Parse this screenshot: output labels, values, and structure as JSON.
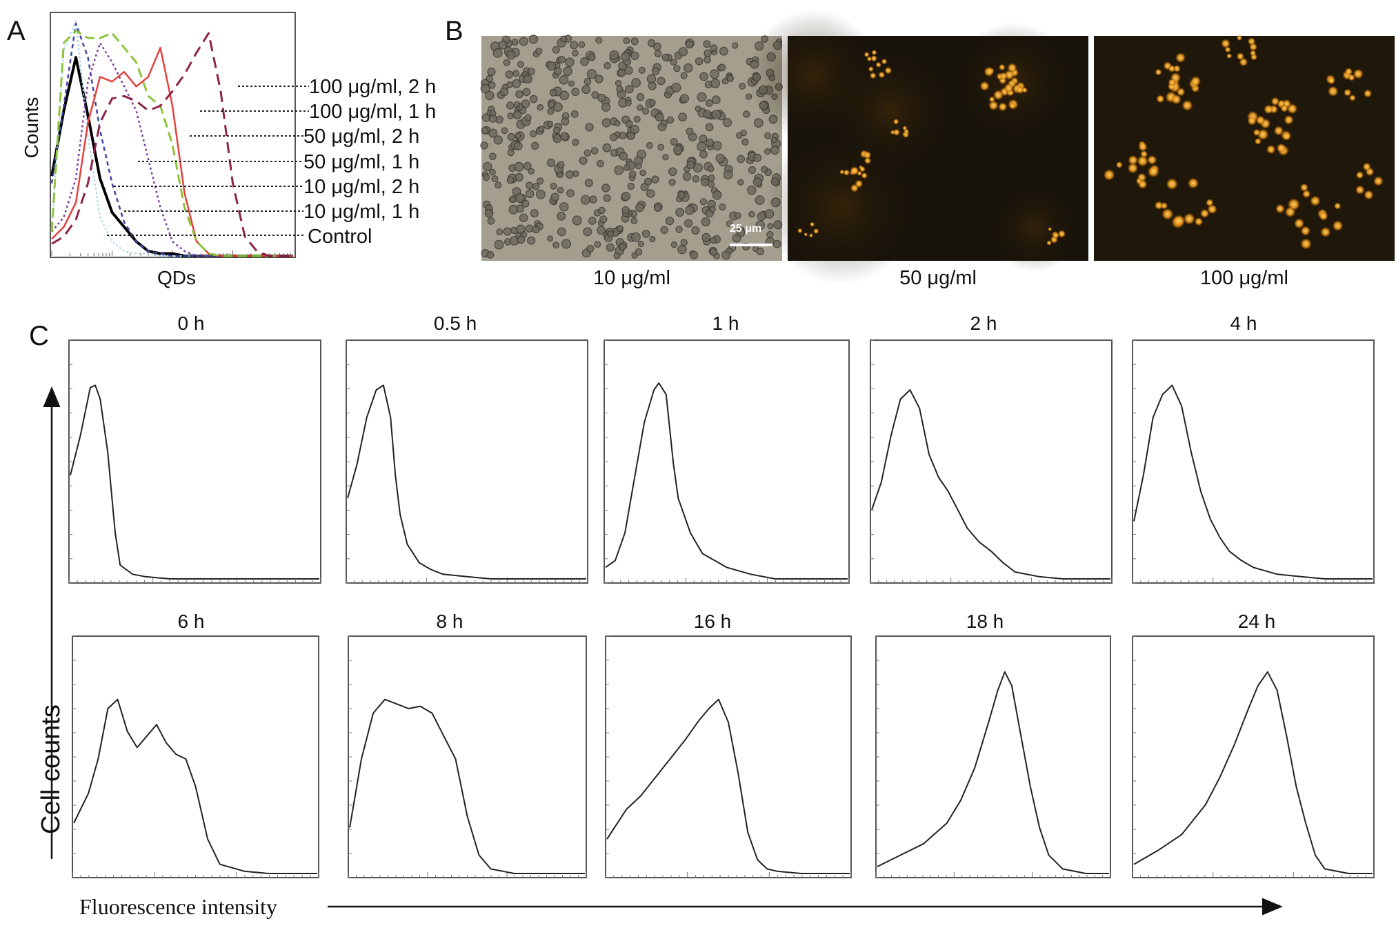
{
  "figure": {
    "panel_labels": [
      "A",
      "B",
      "C"
    ],
    "colors": {
      "control": "#000000",
      "c10_1h": "#a7d3ea",
      "c10_2h": "#3d44a4",
      "c50_1h": "#7a3aa0",
      "c50_2h": "#e3413e",
      "c100_1h": "#8cc43a",
      "c100_2h": "#8e2347"
    }
  },
  "chart_data": [
    {
      "id": "A",
      "type": "line",
      "xlabel": "QDs",
      "ylabel": "Counts",
      "x_scale": "log",
      "x": [
        0,
        0.05,
        0.1,
        0.15,
        0.2,
        0.25,
        0.3,
        0.35,
        0.4,
        0.45,
        0.5,
        0.55,
        0.6,
        0.65,
        0.7,
        0.75,
        0.8,
        0.85,
        0.9,
        0.95,
        1
      ],
      "series": [
        {
          "name": "Control",
          "color_key": "control",
          "values": [
            0.33,
            0.6,
            0.82,
            0.58,
            0.32,
            0.18,
            0.12,
            0.06,
            0.02,
            0.01,
            0.01,
            0.0,
            0.0,
            0.0,
            0.0,
            0.0,
            0.0,
            0.0,
            0.0,
            0.0,
            0.0
          ]
        },
        {
          "name": "10 μg/ml, 1 h",
          "color_key": "c10_1h",
          "values": [
            0.12,
            0.85,
            0.97,
            0.5,
            0.16,
            0.06,
            0.02,
            0.01,
            0.01,
            0.0,
            0.0,
            0.0,
            0.0,
            0.0,
            0.0,
            0.0,
            0.0,
            0.0,
            0.0,
            0.0,
            0.0
          ]
        },
        {
          "name": "10 μg/ml, 2 h",
          "color_key": "c10_2h",
          "values": [
            0.3,
            0.62,
            0.96,
            0.82,
            0.52,
            0.3,
            0.14,
            0.06,
            0.02,
            0.01,
            0.0,
            0.0,
            0.0,
            0.0,
            0.0,
            0.0,
            0.0,
            0.0,
            0.0,
            0.0,
            0.0
          ]
        },
        {
          "name": "50 μg/ml, 1 h",
          "color_key": "c50_1h",
          "values": [
            0.1,
            0.16,
            0.32,
            0.72,
            0.88,
            0.8,
            0.7,
            0.6,
            0.4,
            0.2,
            0.06,
            0.02,
            0.0,
            0.0,
            0.0,
            0.0,
            0.0,
            0.0,
            0.0,
            0.0,
            0.0
          ]
        },
        {
          "name": "50 μg/ml, 2 h",
          "color_key": "c50_2h",
          "values": [
            0.07,
            0.12,
            0.22,
            0.55,
            0.74,
            0.72,
            0.76,
            0.7,
            0.74,
            0.86,
            0.62,
            0.26,
            0.06,
            0.01,
            0.0,
            0.0,
            0.0,
            0.0,
            0.0,
            0.0,
            0.0
          ]
        },
        {
          "name": "100 μg/ml, 1 h",
          "color_key": "c100_1h",
          "values": [
            0.1,
            0.88,
            0.93,
            0.9,
            0.9,
            0.92,
            0.86,
            0.8,
            0.66,
            0.62,
            0.46,
            0.2,
            0.06,
            0.01,
            0.0,
            0.0,
            0.0,
            0.0,
            0.0,
            0.0,
            0.0
          ]
        },
        {
          "name": "100 μg/ml, 2 h",
          "color_key": "c100_2h",
          "values": [
            0.05,
            0.08,
            0.15,
            0.3,
            0.55,
            0.65,
            0.66,
            0.64,
            0.6,
            0.62,
            0.68,
            0.75,
            0.84,
            0.92,
            0.68,
            0.3,
            0.08,
            0.02,
            0.0,
            0.0,
            0.0
          ]
        }
      ]
    },
    {
      "id": "C-0h",
      "type": "line",
      "title": "0 h",
      "ylabel": "Cell counts",
      "xlabel": "Fluorescence intensity",
      "x": [
        0,
        0.04,
        0.08,
        0.1,
        0.12,
        0.15,
        0.18,
        0.2,
        0.25,
        0.3,
        0.4,
        0.5,
        0.6,
        0.8,
        1.0
      ],
      "values": [
        0.45,
        0.62,
        0.83,
        0.84,
        0.78,
        0.55,
        0.2,
        0.06,
        0.02,
        0.01,
        0.0,
        0.0,
        0.0,
        0.0,
        0.0
      ]
    },
    {
      "id": "C-0.5h",
      "type": "line",
      "title": "0.5 h",
      "x": [
        0,
        0.04,
        0.08,
        0.12,
        0.15,
        0.18,
        0.2,
        0.22,
        0.25,
        0.3,
        0.35,
        0.4,
        0.5,
        0.6,
        0.8,
        1.0
      ],
      "values": [
        0.35,
        0.5,
        0.7,
        0.82,
        0.84,
        0.7,
        0.45,
        0.28,
        0.15,
        0.07,
        0.04,
        0.02,
        0.01,
        0.0,
        0.0,
        0.0
      ]
    },
    {
      "id": "C-1h",
      "type": "line",
      "title": "1 h",
      "x": [
        0,
        0.04,
        0.08,
        0.12,
        0.16,
        0.2,
        0.22,
        0.25,
        0.28,
        0.3,
        0.35,
        0.4,
        0.45,
        0.5,
        0.6,
        0.7,
        1.0
      ],
      "values": [
        0.05,
        0.08,
        0.2,
        0.44,
        0.68,
        0.82,
        0.85,
        0.8,
        0.5,
        0.35,
        0.2,
        0.11,
        0.08,
        0.05,
        0.02,
        0.0,
        0.0
      ]
    },
    {
      "id": "C-2h",
      "type": "line",
      "title": "2 h",
      "x": [
        0,
        0.04,
        0.08,
        0.12,
        0.16,
        0.2,
        0.24,
        0.28,
        0.32,
        0.36,
        0.4,
        0.45,
        0.5,
        0.55,
        0.6,
        0.7,
        0.8,
        1.0
      ],
      "values": [
        0.3,
        0.42,
        0.62,
        0.78,
        0.82,
        0.74,
        0.54,
        0.44,
        0.38,
        0.3,
        0.22,
        0.16,
        0.12,
        0.07,
        0.03,
        0.01,
        0.0,
        0.0
      ]
    },
    {
      "id": "C-4h",
      "type": "line",
      "title": "4 h",
      "x": [
        0,
        0.04,
        0.08,
        0.12,
        0.16,
        0.2,
        0.24,
        0.28,
        0.32,
        0.36,
        0.4,
        0.45,
        0.5,
        0.6,
        0.7,
        0.8,
        1.0
      ],
      "values": [
        0.25,
        0.45,
        0.7,
        0.8,
        0.84,
        0.75,
        0.55,
        0.38,
        0.26,
        0.18,
        0.12,
        0.08,
        0.05,
        0.02,
        0.01,
        0.0,
        0.0
      ]
    },
    {
      "id": "C-6h",
      "type": "line",
      "title": "6 h",
      "x": [
        0,
        0.06,
        0.1,
        0.14,
        0.18,
        0.22,
        0.26,
        0.3,
        0.34,
        0.38,
        0.42,
        0.46,
        0.5,
        0.55,
        0.6,
        0.7,
        0.8,
        1.0
      ],
      "values": [
        0.22,
        0.35,
        0.5,
        0.72,
        0.76,
        0.62,
        0.55,
        0.6,
        0.65,
        0.57,
        0.52,
        0.5,
        0.38,
        0.15,
        0.04,
        0.01,
        0.0,
        0.0
      ]
    },
    {
      "id": "C-8h",
      "type": "line",
      "title": "8 h",
      "x": [
        0,
        0.05,
        0.1,
        0.15,
        0.2,
        0.25,
        0.3,
        0.35,
        0.4,
        0.45,
        0.5,
        0.55,
        0.6,
        0.65,
        0.7,
        0.8,
        1.0
      ],
      "values": [
        0.2,
        0.5,
        0.7,
        0.76,
        0.74,
        0.72,
        0.73,
        0.7,
        0.6,
        0.5,
        0.25,
        0.08,
        0.02,
        0.01,
        0.0,
        0.0,
        0.0
      ]
    },
    {
      "id": "C-16h",
      "type": "line",
      "title": "16 h",
      "x": [
        0,
        0.08,
        0.14,
        0.2,
        0.26,
        0.32,
        0.38,
        0.42,
        0.46,
        0.5,
        0.54,
        0.58,
        0.62,
        0.66,
        0.7,
        0.8,
        1.0
      ],
      "values": [
        0.15,
        0.28,
        0.34,
        0.42,
        0.5,
        0.58,
        0.67,
        0.72,
        0.76,
        0.66,
        0.44,
        0.18,
        0.06,
        0.02,
        0.01,
        0.0,
        0.0
      ]
    },
    {
      "id": "C-18h",
      "type": "line",
      "title": "18 h",
      "x": [
        0,
        0.1,
        0.2,
        0.3,
        0.36,
        0.42,
        0.48,
        0.52,
        0.55,
        0.58,
        0.62,
        0.66,
        0.7,
        0.74,
        0.8,
        0.9,
        1.0
      ],
      "values": [
        0.03,
        0.08,
        0.13,
        0.22,
        0.32,
        0.46,
        0.66,
        0.8,
        0.88,
        0.82,
        0.6,
        0.38,
        0.2,
        0.08,
        0.02,
        0.0,
        0.0
      ]
    },
    {
      "id": "C-24h",
      "type": "line",
      "title": "24 h",
      "x": [
        0,
        0.1,
        0.2,
        0.3,
        0.36,
        0.42,
        0.48,
        0.52,
        0.56,
        0.6,
        0.64,
        0.68,
        0.72,
        0.76,
        0.8,
        0.9,
        1.0
      ],
      "values": [
        0.04,
        0.1,
        0.17,
        0.3,
        0.42,
        0.56,
        0.72,
        0.82,
        0.88,
        0.8,
        0.6,
        0.38,
        0.22,
        0.08,
        0.02,
        0.0,
        0.0
      ]
    }
  ],
  "panelB": {
    "images": [
      {
        "caption": "10 μg/ml",
        "style": "brightfield"
      },
      {
        "caption": "50 μg/ml",
        "style": "fluorescence"
      },
      {
        "caption": "100 μg/ml",
        "style": "fluorescence"
      }
    ],
    "scale_bar": "25 μm"
  }
}
